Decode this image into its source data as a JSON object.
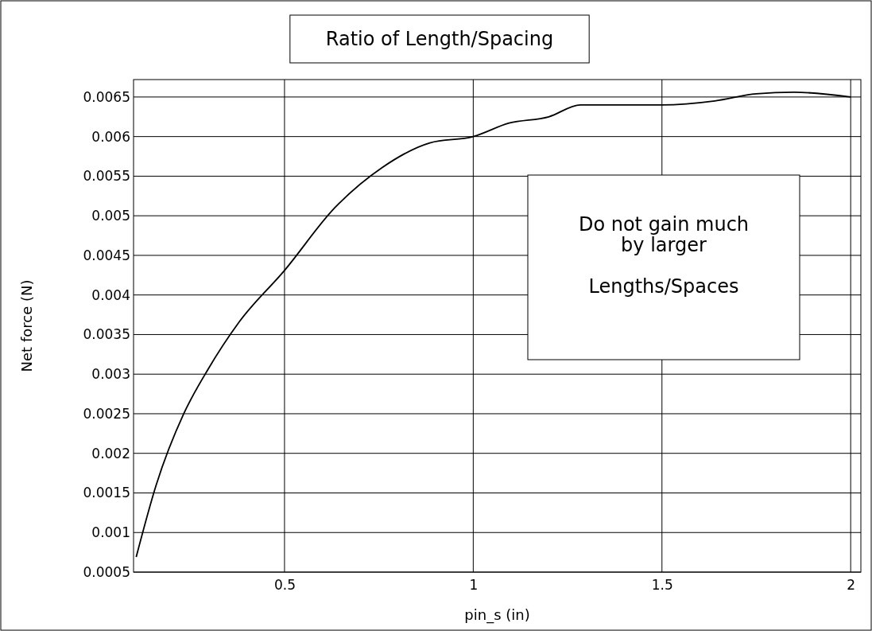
{
  "chart_data": {
    "type": "line",
    "title": "Ratio of Length/Spacing",
    "xlabel": "pin_s (in)",
    "ylabel": "Net force (N)",
    "annotations": [
      "Do not gain much\nby larger\n\nLengths/Spaces"
    ],
    "x": [
      0.107,
      0.16,
      0.233,
      0.296,
      0.38,
      0.5,
      0.633,
      0.759,
      0.885,
      1.0,
      1.095,
      1.2,
      1.284,
      1.39,
      1.5,
      1.64,
      1.75,
      1.85,
      2.0
    ],
    "series": [
      {
        "color": "#000000",
        "values": [
          0.00069,
          0.0016,
          0.0025,
          0.00305,
          0.00366,
          0.00431,
          0.0051,
          0.00561,
          0.00592,
          0.006,
          0.00617,
          0.00625,
          0.0064,
          0.0064,
          0.0064,
          0.00645,
          0.00654,
          0.00656,
          0.0065
        ]
      }
    ],
    "xlim": [
      0.1,
      2.027
    ],
    "ylim": [
      0.0005,
      0.00672
    ],
    "xticks": [
      0.5,
      1,
      1.5,
      2
    ],
    "yticks": [
      0.0005,
      0.001,
      0.0015,
      0.002,
      0.0025,
      0.003,
      0.0035,
      0.004,
      0.0045,
      0.005,
      0.0055,
      0.006,
      0.0065
    ],
    "grid": true,
    "marker": "none",
    "line_style": "solid"
  }
}
